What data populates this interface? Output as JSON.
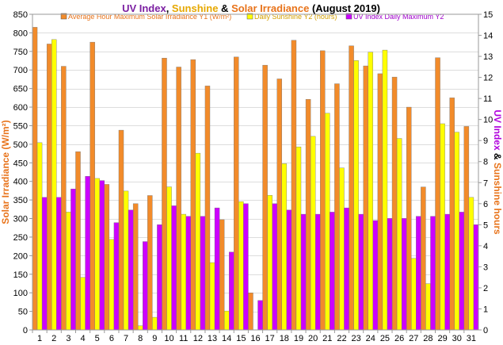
{
  "chart_data": {
    "type": "bar",
    "title": {
      "part1": "UV Index",
      "sep1": ", ",
      "part2": "Sunshine",
      "sep2": " & ",
      "part3": "Solar Irradiance",
      "part4": "(August 2019)"
    },
    "ylabel_left": "Solar Irradiance (W/m²)",
    "ylabel_right": {
      "part1": "UV Index",
      "sep": " & ",
      "part2": "Sunshine hours"
    },
    "categories": [
      "1",
      "2",
      "3",
      "4",
      "5",
      "6",
      "7",
      "8",
      "9",
      "10",
      "11",
      "12",
      "13",
      "14",
      "15",
      "16",
      "17",
      "18",
      "19",
      "20",
      "21",
      "22",
      "23",
      "24",
      "25",
      "26",
      "27",
      "28",
      "29",
      "30",
      "31"
    ],
    "y_left": {
      "range": [
        0,
        850
      ],
      "ticks": [
        0,
        50,
        100,
        150,
        200,
        250,
        300,
        350,
        400,
        450,
        500,
        550,
        600,
        650,
        700,
        750,
        800,
        850
      ]
    },
    "y_right": {
      "range": [
        0,
        15
      ],
      "ticks": [
        0,
        1,
        2,
        3,
        4,
        5,
        6,
        7,
        8,
        9,
        10,
        11,
        12,
        13,
        14,
        15
      ]
    },
    "series": [
      {
        "name": "Average Hour Maximum Solar Irradiance Y1 (W/m²)",
        "axis": "left",
        "color": "#f28b2a",
        "values": [
          815,
          770,
          710,
          480,
          775,
          392,
          538,
          340,
          362,
          732,
          708,
          728,
          657,
          297,
          735,
          100,
          713,
          676,
          780,
          621,
          752,
          663,
          765,
          711,
          690,
          681,
          600,
          385,
          733,
          625,
          548
        ]
      },
      {
        "name": "Daily Sunshine Y2 (hours)",
        "axis": "right",
        "color": "#ffff00",
        "values": [
          8.9,
          13.8,
          5.6,
          2.5,
          7.2,
          4.3,
          6.6,
          0.2,
          0.6,
          6.8,
          5.5,
          8.4,
          3.2,
          0.9,
          6.1,
          0.0,
          6.4,
          7.9,
          8.7,
          9.2,
          10.3,
          7.7,
          12.8,
          13.2,
          13.3,
          9.1,
          3.4,
          2.2,
          9.8,
          9.4,
          6.3
        ]
      },
      {
        "name": "UV Index Daily Maximum Y2",
        "axis": "right",
        "color": "#cc00ff",
        "values": [
          6.3,
          6.3,
          6.7,
          7.3,
          7.1,
          5.1,
          5.7,
          4.2,
          5.0,
          5.9,
          5.4,
          5.4,
          5.8,
          3.7,
          6.0,
          1.4,
          6.0,
          5.7,
          5.5,
          5.5,
          5.6,
          5.8,
          5.5,
          5.2,
          5.3,
          5.3,
          5.4,
          5.4,
          5.5,
          5.6,
          5.0
        ]
      }
    ],
    "grid": true,
    "legend_position": "top"
  }
}
